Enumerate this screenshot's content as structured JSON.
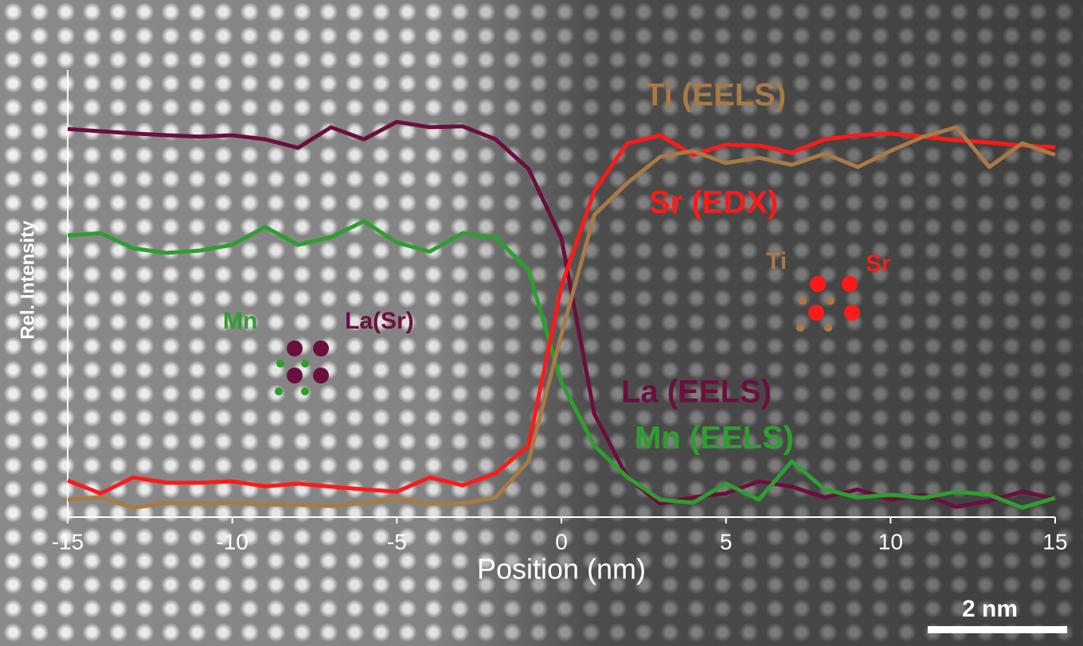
{
  "chart_data": {
    "type": "line",
    "xlabel": "Position (nm)",
    "ylabel": "Rel. Intensity",
    "x": [
      -15,
      -14,
      -13,
      -12,
      -11,
      -10,
      -9,
      -8,
      -7,
      -6,
      -5,
      -4,
      -3,
      -2,
      -1,
      0,
      1,
      2,
      3,
      4,
      5,
      6,
      7,
      8,
      9,
      10,
      11,
      12,
      13,
      14,
      15
    ],
    "xlim": [
      -15,
      15
    ],
    "xticks": [
      -15,
      -10,
      -5,
      0,
      5,
      10,
      15
    ],
    "ylim": [
      0,
      1
    ],
    "series": [
      {
        "name": "La (EELS)",
        "color": "#6b0f3c",
        "values": [
          0.868,
          0.863,
          0.858,
          0.854,
          0.851,
          0.854,
          0.845,
          0.826,
          0.872,
          0.845,
          0.884,
          0.872,
          0.874,
          0.845,
          0.779,
          0.623,
          0.231,
          0.089,
          0.03,
          0.044,
          0.053,
          0.08,
          0.068,
          0.044,
          0.062,
          0.039,
          0.05,
          0.023,
          0.036,
          0.057,
          0.041
        ]
      },
      {
        "name": "Mn (EELS)",
        "color": "#2e9e2e",
        "values": [
          0.63,
          0.635,
          0.601,
          0.591,
          0.596,
          0.609,
          0.649,
          0.609,
          0.626,
          0.662,
          0.614,
          0.594,
          0.635,
          0.626,
          0.552,
          0.302,
          0.16,
          0.089,
          0.039,
          0.032,
          0.075,
          0.039,
          0.125,
          0.062,
          0.044,
          0.05,
          0.043,
          0.057,
          0.05,
          0.021,
          0.043
        ]
      },
      {
        "name": "Sr (EDX)",
        "color": "#ff1a1a",
        "values": [
          0.082,
          0.053,
          0.089,
          0.077,
          0.077,
          0.08,
          0.069,
          0.075,
          0.068,
          0.062,
          0.057,
          0.089,
          0.071,
          0.098,
          0.16,
          0.516,
          0.73,
          0.836,
          0.854,
          0.81,
          0.833,
          0.831,
          0.815,
          0.845,
          0.854,
          0.858,
          0.851,
          0.843,
          0.838,
          0.831,
          0.827
        ]
      },
      {
        "name": "Ti (EELS)",
        "color": "#a87a45",
        "values": [
          0.039,
          0.044,
          0.021,
          0.032,
          0.03,
          0.032,
          0.028,
          0.028,
          0.025,
          0.032,
          0.041,
          0.03,
          0.03,
          0.044,
          0.125,
          0.409,
          0.676,
          0.747,
          0.806,
          0.819,
          0.792,
          0.804,
          0.788,
          0.813,
          0.783,
          0.819,
          0.851,
          0.872,
          0.783,
          0.836,
          0.81
        ]
      }
    ],
    "annotations": [
      "Mn",
      "La(Sr)",
      "Ti",
      "Sr"
    ],
    "scale_bar": "2 nm"
  }
}
